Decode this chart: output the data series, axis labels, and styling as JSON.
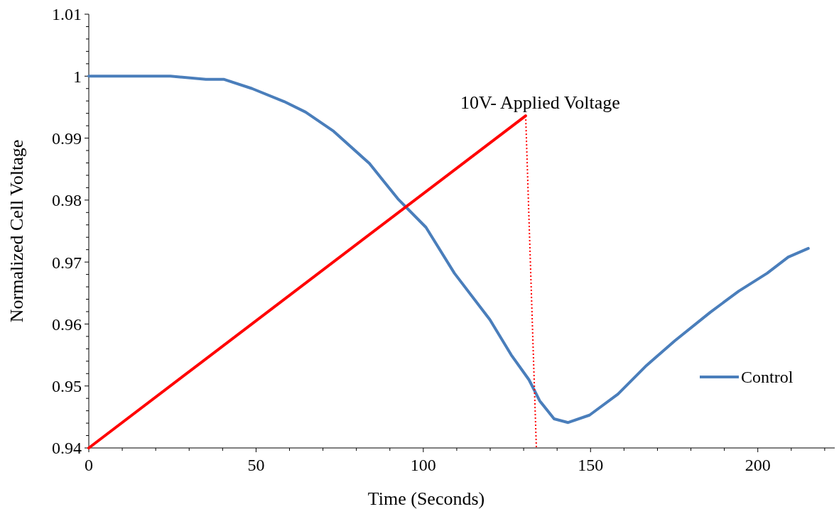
{
  "chart_data": {
    "type": "line",
    "xlabel": "Time (Seconds)",
    "ylabel": "Normalized Cell Voltage",
    "xlim": [
      0,
      223
    ],
    "ylim": [
      0.94,
      1.01
    ],
    "xticks": [
      0,
      {
        "value": 10,
        "label": null
      },
      {
        "value": 20,
        "label": null
      },
      {
        "value": 30,
        "label": null
      },
      {
        "value": 40,
        "label": null
      },
      50,
      {
        "value": 60,
        "label": null
      },
      {
        "value": 70,
        "label": null
      },
      {
        "value": 80,
        "label": null
      },
      {
        "value": 90,
        "label": null
      },
      100,
      {
        "value": 110,
        "label": null
      },
      {
        "value": 120,
        "label": null
      },
      {
        "value": 130,
        "label": null
      },
      {
        "value": 140,
        "label": null
      },
      150,
      {
        "value": 160,
        "label": null
      },
      {
        "value": 170,
        "label": null
      },
      {
        "value": 180,
        "label": null
      },
      {
        "value": 190,
        "label": null
      },
      200,
      {
        "value": 210,
        "label": null
      },
      {
        "value": 220,
        "label": null
      }
    ],
    "yticks": [
      0.94,
      {
        "value": 0.942,
        "label": null
      },
      {
        "value": 0.944,
        "label": null
      },
      {
        "value": 0.946,
        "label": null
      },
      {
        "value": 0.948,
        "label": null
      },
      0.95,
      {
        "value": 0.952,
        "label": null
      },
      {
        "value": 0.954,
        "label": null
      },
      {
        "value": 0.956,
        "label": null
      },
      {
        "value": 0.958,
        "label": null
      },
      0.96,
      {
        "value": 0.962,
        "label": null
      },
      {
        "value": 0.964,
        "label": null
      },
      {
        "value": 0.966,
        "label": null
      },
      {
        "value": 0.968,
        "label": null
      },
      0.97,
      {
        "value": 0.972,
        "label": null
      },
      {
        "value": 0.974,
        "label": null
      },
      {
        "value": 0.976,
        "label": null
      },
      {
        "value": 0.978,
        "label": null
      },
      0.98,
      {
        "value": 0.982,
        "label": null
      },
      {
        "value": 0.984,
        "label": null
      },
      {
        "value": 0.986,
        "label": null
      },
      {
        "value": 0.988,
        "label": null
      },
      0.99,
      {
        "value": 0.992,
        "label": null
      },
      {
        "value": 0.994,
        "label": null
      },
      {
        "value": 0.996,
        "label": null
      },
      {
        "value": 0.998,
        "label": null
      },
      1,
      {
        "value": 1.002,
        "label": null
      },
      {
        "value": 1.004,
        "label": null
      },
      {
        "value": 1.006,
        "label": null
      },
      {
        "value": 1.008,
        "label": null
      },
      1.01
    ],
    "grid": false,
    "legend": "bottom right",
    "marker": "none",
    "annotations": [
      {
        "text": "10V- Applied Voltage",
        "x": 130.6,
        "y": 0.9936
      }
    ],
    "series": [
      {
        "name": "Control",
        "color": "#4a7ebb",
        "line_style": "solid",
        "x": [
          0,
          24.4,
          35,
          40.3,
          48.8,
          58.4,
          64.8,
          73.2,
          83.9,
          92.4,
          100.8,
          109.3,
          119.9,
          126.3,
          131.6,
          134.8,
          139.1,
          143.3,
          149.7,
          158.2,
          166.7,
          175.2,
          185.8,
          194.3,
          202.8,
          209.1,
          215.1
        ],
        "values": [
          1.0,
          1.0,
          0.9995,
          0.9995,
          0.998,
          0.9959,
          0.9942,
          0.9911,
          0.9859,
          0.9802,
          0.9756,
          0.9682,
          0.9607,
          0.955,
          0.951,
          0.9476,
          0.9447,
          0.9441,
          0.9453,
          0.9487,
          0.9533,
          0.9573,
          0.9619,
          0.9653,
          0.9682,
          0.9708,
          0.9722
        ]
      },
      {
        "color": "#ff0000",
        "line_style": "solid",
        "x": [
          0,
          130.6
        ],
        "values": [
          0.94,
          0.9936
        ]
      },
      {
        "color": "#ff0000",
        "line_style": "dotted",
        "x": [
          130.6,
          133.8
        ],
        "values": [
          0.9936,
          0.94
        ]
      }
    ]
  }
}
